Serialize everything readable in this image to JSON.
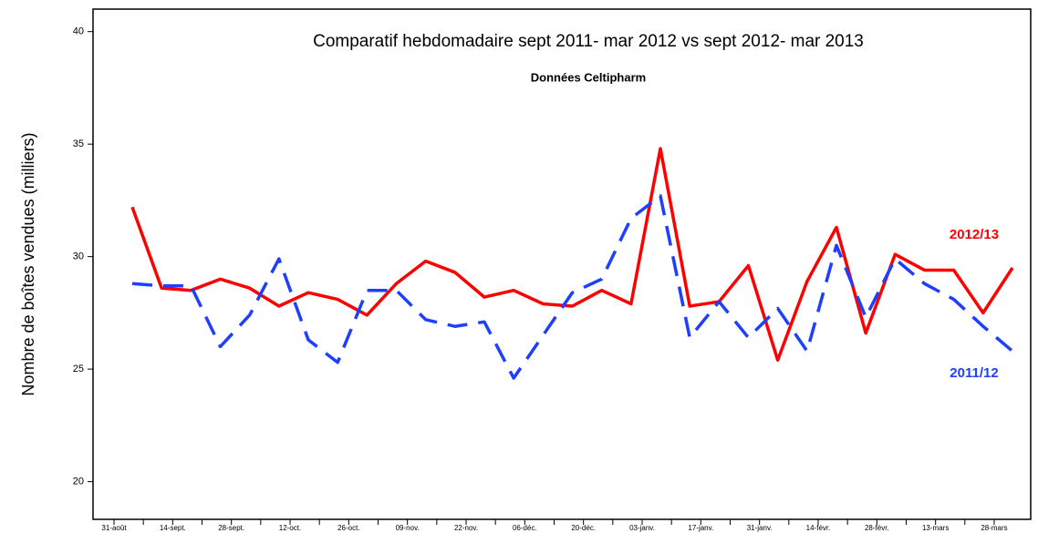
{
  "chart_data": {
    "type": "line",
    "title": "Comparatif hebdomadaire sept 2011- mar 2012 vs sept 2012- mar 2013",
    "subtitle": "Données Celtipharm",
    "y_label": "Nombre de boîtes vendues  (milliers)",
    "categories": [
      "31-août",
      null,
      "14-sept.",
      null,
      "28-sept.",
      null,
      "12-oct.",
      null,
      "26-oct.",
      null,
      "09-nov.",
      null,
      "22-nov.",
      null,
      "06-déc.",
      null,
      "20-déc.",
      null,
      "03-janv.",
      null,
      "17-janv.",
      null,
      "31-janv.",
      null,
      "14-févr.",
      null,
      "28-févr.",
      null,
      "13-mars",
      null,
      "28-mars"
    ],
    "series": [
      {
        "name": "2012/13",
        "color": "#ff0000",
        "style": "solid",
        "values": [
          32.2,
          28.6,
          28.5,
          29.0,
          28.6,
          27.8,
          28.4,
          28.1,
          27.4,
          28.8,
          29.8,
          29.3,
          28.2,
          28.5,
          27.9,
          27.8,
          28.5,
          27.9,
          34.8,
          27.8,
          28.0,
          29.6,
          25.4,
          28.9,
          31.3,
          26.6,
          30.1,
          29.4,
          29.4,
          27.5,
          29.5
        ]
      },
      {
        "name": "2011/12",
        "color": "#1f3fff",
        "style": "dashed",
        "values": [
          28.8,
          28.7,
          28.7,
          26.0,
          27.4,
          29.9,
          26.3,
          25.3,
          28.5,
          28.5,
          27.2,
          26.9,
          27.1,
          24.6,
          26.5,
          28.4,
          29.0,
          31.7,
          32.7,
          26.4,
          28.0,
          26.4,
          27.7,
          25.8,
          30.5,
          27.3,
          29.9,
          28.8,
          28.1,
          26.9,
          25.8
        ]
      }
    ],
    "ylim": [
      18,
      41
    ],
    "yticks": [
      20,
      25,
      30,
      35,
      40
    ]
  }
}
